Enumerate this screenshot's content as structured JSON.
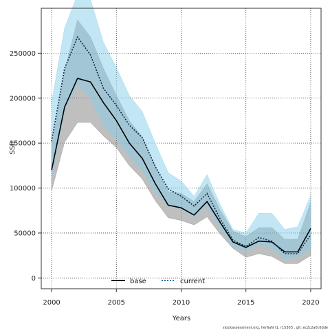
{
  "chart_data": {
    "type": "line",
    "xlabel": "Years",
    "ylabel": "SSB",
    "xlim": [
      1999.2,
      2020.8
    ],
    "ylim": [
      -12000,
      300000
    ],
    "x_ticks": [
      2000,
      2005,
      2010,
      2015,
      2020
    ],
    "y_ticks": [
      0,
      50000,
      100000,
      150000,
      200000,
      250000
    ],
    "grid": true,
    "grid_style": "dotted",
    "legend_position": "bottom-center",
    "series": [
      {
        "name": "base",
        "color": "#000000",
        "band_color": "#808080",
        "line_style": "solid",
        "x": [
          2000,
          2001,
          2002,
          2003,
          2004,
          2005,
          2006,
          2007,
          2008,
          2009,
          2010,
          2011,
          2012,
          2013,
          2014,
          2015,
          2016,
          2017,
          2018,
          2019,
          2020
        ],
        "values": [
          120000,
          190000,
          222000,
          218000,
          195000,
          175000,
          150000,
          133000,
          105000,
          81000,
          78000,
          70000,
          85000,
          62000,
          40000,
          34000,
          41000,
          40000,
          29000,
          29000,
          55000
        ],
        "lower": [
          97000,
          151000,
          173000,
          173000,
          158000,
          145000,
          125000,
          110000,
          86000,
          67000,
          64000,
          59000,
          68000,
          49000,
          33000,
          23000,
          27000,
          24000,
          16000,
          16000,
          25000
        ],
        "upper": [
          145000,
          230000,
          287000,
          268000,
          233000,
          203000,
          175000,
          157000,
          124000,
          96000,
          94000,
          85000,
          105000,
          76000,
          52000,
          46000,
          56000,
          56000,
          43000,
          43000,
          84000
        ]
      },
      {
        "name": "current",
        "color": "#1a6fa3",
        "band_color": "#87ceeb",
        "line_style": "dotted",
        "x": [
          2000,
          2001,
          2002,
          2003,
          2004,
          2005,
          2006,
          2007,
          2008,
          2009,
          2010,
          2011,
          2012,
          2013,
          2014,
          2015,
          2016,
          2017,
          2018,
          2019,
          2020
        ],
        "values": [
          152000,
          233000,
          268000,
          248000,
          211000,
          192000,
          170000,
          156000,
          124000,
          99000,
          91000,
          80000,
          94000,
          66000,
          42000,
          35000,
          45000,
          41000,
          27000,
          27000,
          48000
        ],
        "lower": [
          110000,
          185000,
          215000,
          200000,
          170000,
          155000,
          135000,
          120000,
          96000,
          80000,
          77000,
          67000,
          80000,
          55000,
          34000,
          30000,
          37000,
          33000,
          21000,
          23000,
          32000
        ],
        "upper": [
          195000,
          278000,
          315000,
          310000,
          262000,
          234000,
          203000,
          185000,
          150000,
          117000,
          108000,
          91000,
          115000,
          82000,
          54000,
          50000,
          72000,
          72000,
          54000,
          57000,
          92000
        ]
      }
    ]
  },
  "footer": {
    "credit": "stockassessment.org, her6aN  r1, r15303 , git: ec2c2a0c6dde"
  }
}
